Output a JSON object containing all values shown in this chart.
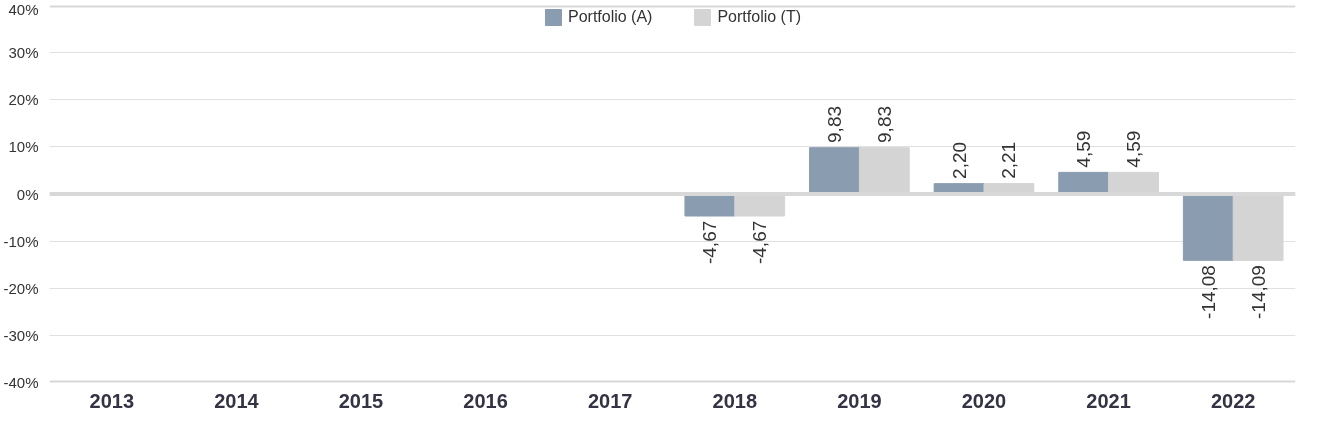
{
  "chart_data": {
    "type": "bar",
    "categories": [
      "2013",
      "2014",
      "2015",
      "2016",
      "2017",
      "2018",
      "2019",
      "2020",
      "2021",
      "2022"
    ],
    "series": [
      {
        "name": "Portfolio (A)",
        "color": "#8a9caf",
        "values": [
          null,
          null,
          null,
          null,
          null,
          -4.67,
          9.83,
          2.2,
          4.59,
          -14.08
        ],
        "value_labels": [
          null,
          null,
          null,
          null,
          null,
          "-4,67",
          "9,83",
          "2,20",
          "4,59",
          "-14,08"
        ]
      },
      {
        "name": "Portfolio (T)",
        "color": "#d4d4d4",
        "values": [
          null,
          null,
          null,
          null,
          null,
          -4.67,
          9.83,
          2.21,
          4.59,
          -14.09
        ],
        "value_labels": [
          null,
          null,
          null,
          null,
          null,
          "-4,67",
          "9,83",
          "2,21",
          "4,59",
          "-14,09"
        ]
      }
    ],
    "ylim": [
      -40,
      40
    ],
    "yticks": [
      {
        "value": -40,
        "label": "-40%"
      },
      {
        "value": -30,
        "label": "-30%"
      },
      {
        "value": -20,
        "label": "-20%"
      },
      {
        "value": -10,
        "label": "-10%"
      },
      {
        "value": 0,
        "label": "0%"
      },
      {
        "value": 10,
        "label": "10%"
      },
      {
        "value": 20,
        "label": "20%"
      },
      {
        "value": 30,
        "label": "30%"
      },
      {
        "value": 40,
        "label": "40%"
      }
    ],
    "grid": "y",
    "legend": "top"
  }
}
